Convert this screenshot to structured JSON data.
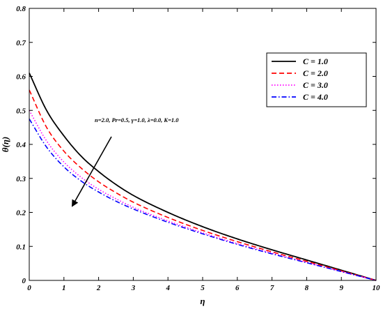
{
  "chart_data": {
    "type": "line",
    "title": "",
    "xlabel": "η",
    "ylabel": "θ(η)",
    "xlim": [
      0,
      10
    ],
    "ylim": [
      0,
      0.8
    ],
    "xticks": [
      "0",
      "1",
      "2",
      "3",
      "4",
      "5",
      "6",
      "7",
      "8",
      "9",
      "10"
    ],
    "yticks": [
      "0",
      "0.1",
      "0.2",
      "0.3",
      "0.4",
      "0.5",
      "0.6",
      "0.7",
      "0.8"
    ],
    "grid": false,
    "legend_position": "top-right",
    "annotation": "n=2.0, Pr=0.5, γ=1.0, λ=0.0, K=1.0",
    "x": [
      0,
      0.5,
      1,
      1.5,
      2,
      2.5,
      3,
      4,
      5,
      6,
      7,
      8,
      9,
      10
    ],
    "series": [
      {
        "name": "C = 1.0",
        "color": "#000000",
        "dash": "solid",
        "values": [
          0.61,
          0.5,
          0.425,
          0.365,
          0.32,
          0.282,
          0.25,
          0.2,
          0.158,
          0.122,
          0.09,
          0.06,
          0.03,
          0.0
        ]
      },
      {
        "name": "C = 2.0",
        "color": "#ff0000",
        "dash": "dashed",
        "values": [
          0.56,
          0.45,
          0.38,
          0.33,
          0.29,
          0.258,
          0.23,
          0.185,
          0.147,
          0.114,
          0.084,
          0.056,
          0.028,
          0.0
        ]
      },
      {
        "name": "C = 3.0",
        "color": "#ff00ff",
        "dash": "dotted",
        "values": [
          0.5,
          0.41,
          0.348,
          0.303,
          0.268,
          0.24,
          0.215,
          0.175,
          0.14,
          0.108,
          0.08,
          0.053,
          0.026,
          0.0
        ]
      },
      {
        "name": "C = 4.0",
        "color": "#0000ff",
        "dash": "dashdot",
        "values": [
          0.475,
          0.392,
          0.334,
          0.292,
          0.26,
          0.233,
          0.21,
          0.171,
          0.137,
          0.106,
          0.078,
          0.052,
          0.026,
          0.0
        ]
      }
    ]
  }
}
